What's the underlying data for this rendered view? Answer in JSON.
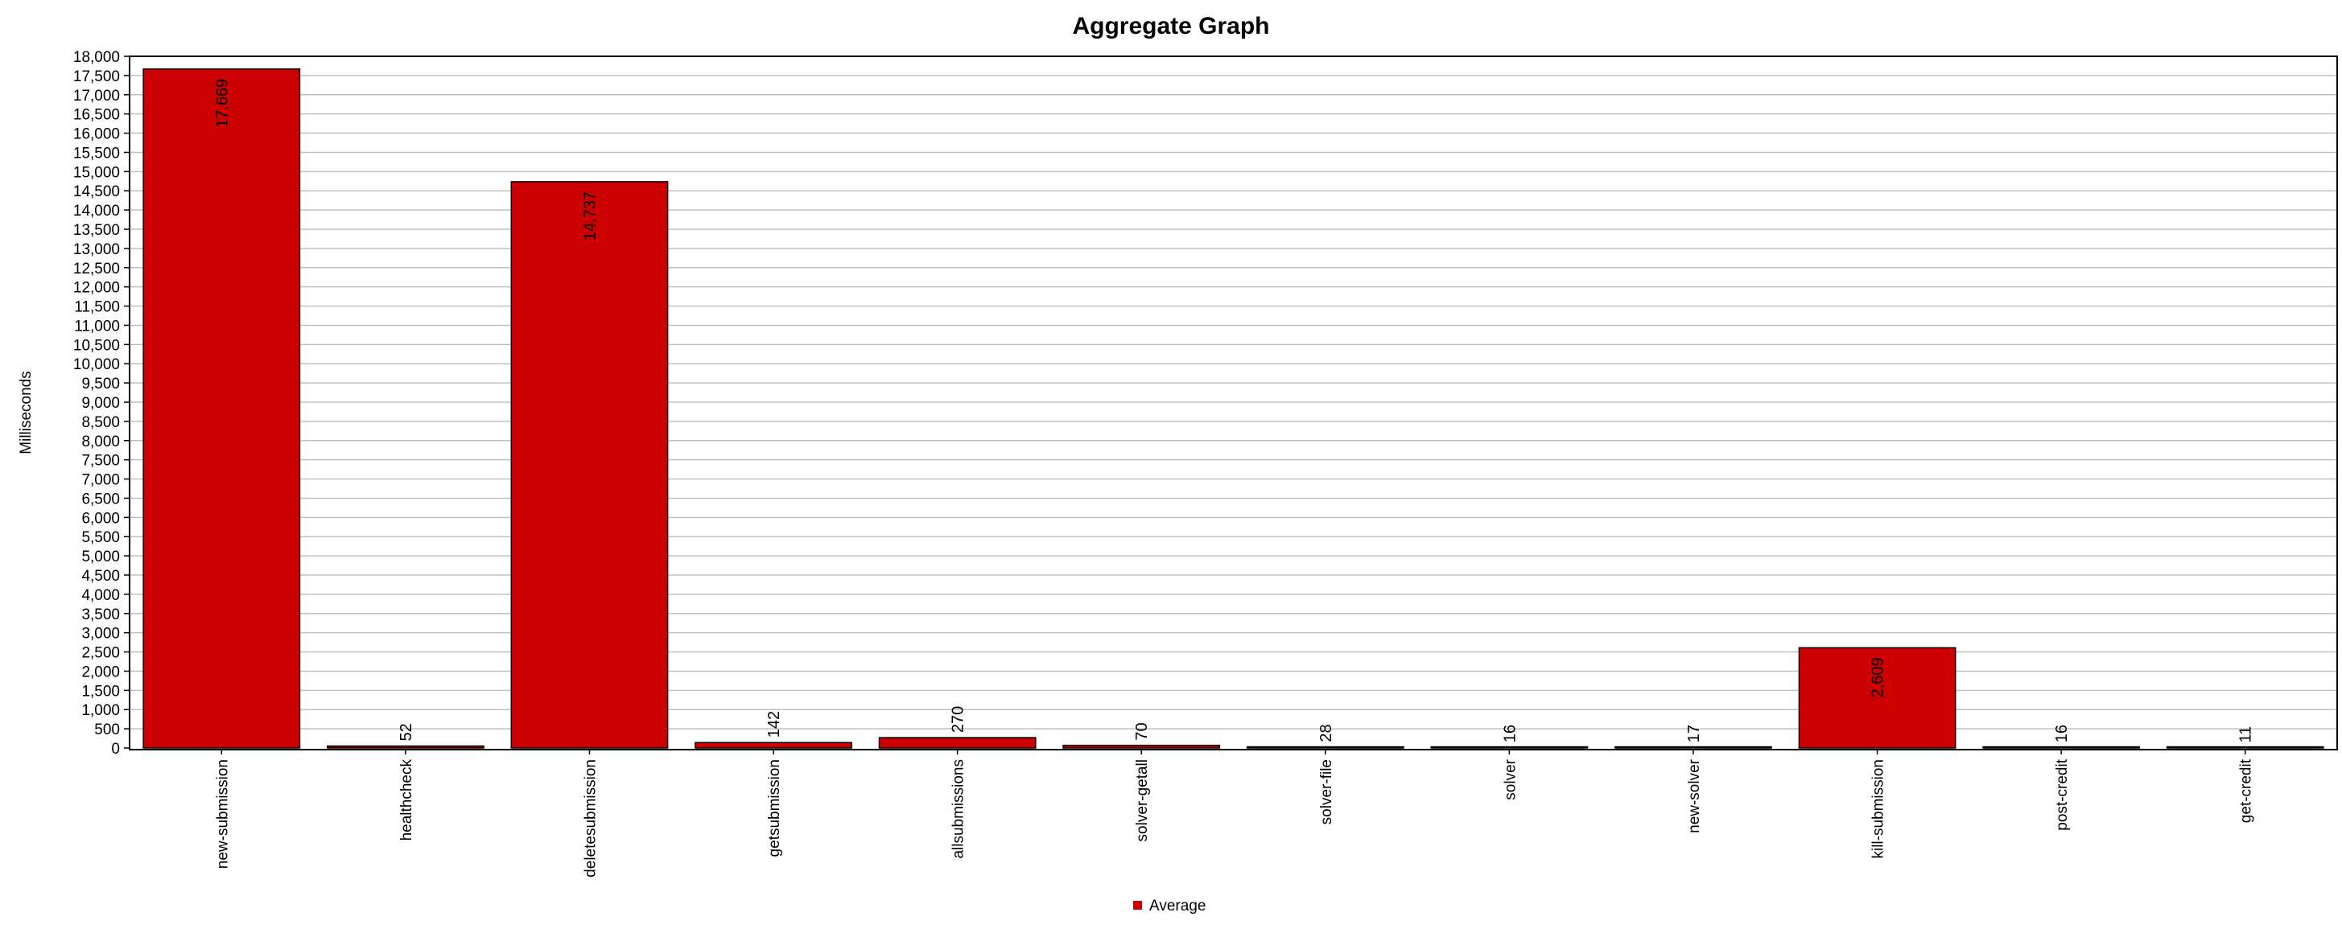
{
  "chart_data": {
    "type": "bar",
    "title": "Aggregate Graph",
    "xlabel": "",
    "ylabel": "Milliseconds",
    "ylim": [
      0,
      18000
    ],
    "ytick_step": 500,
    "grid": true,
    "legend_position": "bottom",
    "categories": [
      "new-submission",
      "healthcheck",
      "deletesubmission",
      "getsubmission",
      "allsubmissions",
      "solver-getall",
      "solver-file",
      "solver",
      "new-solver",
      "kill-submission",
      "post-credit",
      "get-credit"
    ],
    "series": [
      {
        "name": "Average",
        "color": "#cc0000",
        "values": [
          17669,
          52,
          14737,
          142,
          270,
          70,
          28,
          16,
          17,
          2609,
          16,
          11
        ],
        "labels": [
          "17,669",
          "52",
          "14,737",
          "142",
          "270",
          "70",
          "28",
          "16",
          "17",
          "2,609",
          "16",
          "11"
        ]
      }
    ]
  }
}
